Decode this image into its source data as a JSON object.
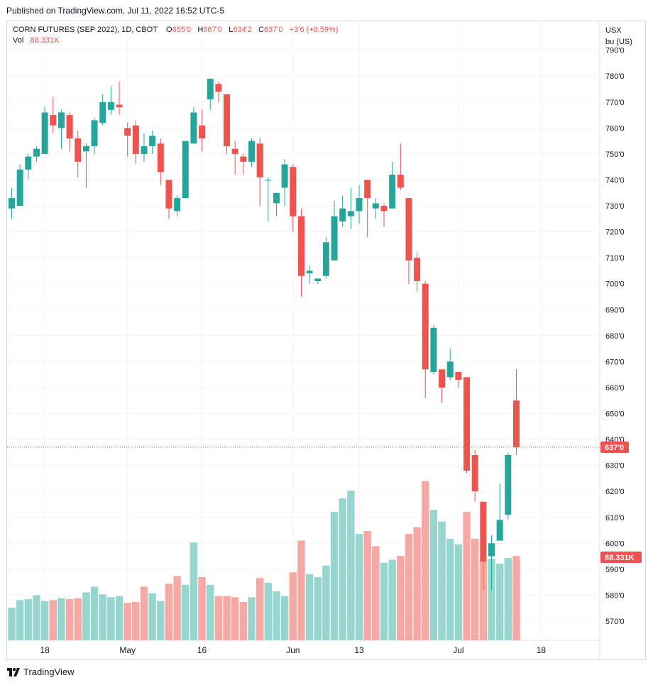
{
  "header": {
    "published": "Published on TradingView.com, Jul 11, 2022 16:52 UTC-5"
  },
  "legend": {
    "symbol": "CORN FUTURES (SEP 2022), 1D, CBOT",
    "o_label": "O",
    "o_value": "655'0",
    "h_label": "H",
    "h_value": "667'0",
    "l_label": "L",
    "l_value": "634'2",
    "c_label": "C",
    "c_value": "637'0",
    "change": "+3'6 (+0.59%)",
    "vol_label": "Vol",
    "vol_value": "88.331K"
  },
  "price_axis": {
    "currency": "USX",
    "unit": "bu (US)"
  },
  "footer": {
    "logo_text": "TradingView"
  },
  "colors": {
    "up": "#26a69a",
    "down": "#ef5350",
    "vol_up": "#97d5cf",
    "vol_down": "#f6a8a5",
    "grid": "#f0f3fa",
    "axis_text": "#131722"
  },
  "chart_data": {
    "type": "candlestick",
    "title": "CORN FUTURES (SEP 2022), 1D, CBOT",
    "ylim": [
      564,
      792
    ],
    "y_ticks": [
      "570'0",
      "580'0",
      "590'0",
      "600'0",
      "610'0",
      "620'0",
      "630'0",
      "640'0",
      "650'0",
      "660'0",
      "670'0",
      "680'0",
      "690'0",
      "700'0",
      "710'0",
      "720'0",
      "730'0",
      "740'0",
      "750'0",
      "760'0",
      "770'0",
      "780'0",
      "790'0"
    ],
    "x_tick_labels": [
      {
        "label": "18",
        "index": 4
      },
      {
        "label": "May",
        "index": 14
      },
      {
        "label": "16",
        "index": 23
      },
      {
        "label": "Jun",
        "index": 34
      },
      {
        "label": "13",
        "index": 42
      },
      {
        "label": "Jul",
        "index": 54
      },
      {
        "label": "18",
        "index": 64
      }
    ],
    "last_price": {
      "value": 637,
      "label": "637'0"
    },
    "last_volume": {
      "label": "88.331K"
    },
    "candles": [
      {
        "o": 729,
        "h": 737,
        "l": 725,
        "c": 733
      },
      {
        "o": 730,
        "h": 746,
        "l": 730,
        "c": 744
      },
      {
        "o": 744,
        "h": 750,
        "l": 740,
        "c": 749
      },
      {
        "o": 749,
        "h": 753,
        "l": 747,
        "c": 752
      },
      {
        "o": 750,
        "h": 768,
        "l": 750,
        "c": 766
      },
      {
        "o": 765,
        "h": 772,
        "l": 758,
        "c": 761
      },
      {
        "o": 760,
        "h": 767,
        "l": 752,
        "c": 766
      },
      {
        "o": 765,
        "h": 766,
        "l": 751,
        "c": 756
      },
      {
        "o": 756,
        "h": 759,
        "l": 741,
        "c": 747
      },
      {
        "o": 751,
        "h": 754,
        "l": 737,
        "c": 753
      },
      {
        "o": 753,
        "h": 764,
        "l": 750,
        "c": 763
      },
      {
        "o": 762,
        "h": 773,
        "l": 761,
        "c": 770
      },
      {
        "o": 767,
        "h": 776,
        "l": 765,
        "c": 770
      },
      {
        "o": 769,
        "h": 778,
        "l": 765,
        "c": 768
      },
      {
        "o": 760,
        "h": 762,
        "l": 749,
        "c": 757
      },
      {
        "o": 761,
        "h": 763,
        "l": 746,
        "c": 750
      },
      {
        "o": 750,
        "h": 758,
        "l": 747,
        "c": 753
      },
      {
        "o": 753,
        "h": 759,
        "l": 750,
        "c": 757
      },
      {
        "o": 754,
        "h": 756,
        "l": 738,
        "c": 743
      },
      {
        "o": 740,
        "h": 740,
        "l": 725,
        "c": 729
      },
      {
        "o": 728,
        "h": 734,
        "l": 726,
        "c": 733
      },
      {
        "o": 733,
        "h": 755,
        "l": 733,
        "c": 755
      },
      {
        "o": 754,
        "h": 768,
        "l": 754,
        "c": 766
      },
      {
        "o": 761,
        "h": 767,
        "l": 751,
        "c": 756
      },
      {
        "o": 771,
        "h": 779,
        "l": 767,
        "c": 779
      },
      {
        "o": 777,
        "h": 778,
        "l": 770,
        "c": 774
      },
      {
        "o": 773,
        "h": 773,
        "l": 750,
        "c": 753
      },
      {
        "o": 752,
        "h": 755,
        "l": 742,
        "c": 750
      },
      {
        "o": 749,
        "h": 750,
        "l": 742,
        "c": 747
      },
      {
        "o": 747,
        "h": 756,
        "l": 745,
        "c": 755
      },
      {
        "o": 754,
        "h": 756,
        "l": 730,
        "c": 741
      },
      {
        "o": 740,
        "h": 741,
        "l": 724,
        "c": 740
      },
      {
        "o": 731,
        "h": 734,
        "l": 726,
        "c": 735
      },
      {
        "o": 737,
        "h": 748,
        "l": 730,
        "c": 746
      },
      {
        "o": 745,
        "h": 746,
        "l": 720,
        "c": 726
      },
      {
        "o": 726,
        "h": 729,
        "l": 695,
        "c": 703
      },
      {
        "o": 704,
        "h": 707,
        "l": 700,
        "c": 705
      },
      {
        "o": 701,
        "h": 702,
        "l": 700,
        "c": 702
      },
      {
        "o": 703,
        "h": 718,
        "l": 702,
        "c": 716
      },
      {
        "o": 709,
        "h": 732,
        "l": 709,
        "c": 726
      },
      {
        "o": 724,
        "h": 734,
        "l": 722,
        "c": 729
      },
      {
        "o": 726,
        "h": 737,
        "l": 721,
        "c": 728
      },
      {
        "o": 728,
        "h": 738,
        "l": 723,
        "c": 733
      },
      {
        "o": 740,
        "h": 740,
        "l": 718,
        "c": 733
      },
      {
        "o": 729,
        "h": 733,
        "l": 725,
        "c": 731
      },
      {
        "o": 730,
        "h": 731,
        "l": 722,
        "c": 728
      },
      {
        "o": 729,
        "h": 747,
        "l": 729,
        "c": 742
      },
      {
        "o": 742,
        "h": 754,
        "l": 736,
        "c": 737
      },
      {
        "o": 733,
        "h": 733,
        "l": 700,
        "c": 709
      },
      {
        "o": 710,
        "h": 712,
        "l": 697,
        "c": 701
      },
      {
        "o": 700,
        "h": 701,
        "l": 656,
        "c": 667
      },
      {
        "o": 666,
        "h": 684,
        "l": 665,
        "c": 683
      },
      {
        "o": 667,
        "h": 667,
        "l": 654,
        "c": 660
      },
      {
        "o": 664,
        "h": 675,
        "l": 663,
        "c": 670
      },
      {
        "o": 666,
        "h": 666,
        "l": 660,
        "c": 663
      },
      {
        "o": 664,
        "h": 664,
        "l": 627,
        "c": 628
      },
      {
        "o": 634,
        "h": 636,
        "l": 616,
        "c": 620
      },
      {
        "o": 616,
        "h": 616,
        "l": 582,
        "c": 593
      },
      {
        "o": 595,
        "h": 603,
        "l": 582,
        "c": 600
      },
      {
        "o": 601,
        "h": 623,
        "l": 601,
        "c": 609
      },
      {
        "o": 611,
        "h": 635,
        "l": 609,
        "c": 634
      },
      {
        "o": 655,
        "h": 667,
        "l": 634,
        "c": 637
      }
    ],
    "volume": [
      {
        "v": 34,
        "up": true
      },
      {
        "v": 42,
        "up": true
      },
      {
        "v": 43,
        "up": true
      },
      {
        "v": 47,
        "up": true
      },
      {
        "v": 41,
        "up": true
      },
      {
        "v": 42,
        "up": false
      },
      {
        "v": 44,
        "up": true
      },
      {
        "v": 43,
        "up": false
      },
      {
        "v": 44,
        "up": false
      },
      {
        "v": 50,
        "up": true
      },
      {
        "v": 56,
        "up": true
      },
      {
        "v": 48,
        "up": true
      },
      {
        "v": 45,
        "up": true
      },
      {
        "v": 46,
        "up": true
      },
      {
        "v": 39,
        "up": false
      },
      {
        "v": 40,
        "up": false
      },
      {
        "v": 56,
        "up": false
      },
      {
        "v": 49,
        "up": true
      },
      {
        "v": 41,
        "up": true
      },
      {
        "v": 59,
        "up": false
      },
      {
        "v": 67,
        "up": false
      },
      {
        "v": 58,
        "up": true
      },
      {
        "v": 102,
        "up": true
      },
      {
        "v": 66,
        "up": false
      },
      {
        "v": 58,
        "up": true
      },
      {
        "v": 46,
        "up": false
      },
      {
        "v": 46,
        "up": false
      },
      {
        "v": 45,
        "up": false
      },
      {
        "v": 40,
        "up": false
      },
      {
        "v": 45,
        "up": true
      },
      {
        "v": 65,
        "up": false
      },
      {
        "v": 60,
        "up": true
      },
      {
        "v": 51,
        "up": true
      },
      {
        "v": 46,
        "up": true
      },
      {
        "v": 71,
        "up": false
      },
      {
        "v": 104,
        "up": false
      },
      {
        "v": 69,
        "up": true
      },
      {
        "v": 66,
        "up": true
      },
      {
        "v": 78,
        "up": true
      },
      {
        "v": 134,
        "up": true
      },
      {
        "v": 148,
        "up": true
      },
      {
        "v": 156,
        "up": true
      },
      {
        "v": 111,
        "up": true
      },
      {
        "v": 114,
        "up": false
      },
      {
        "v": 98,
        "up": false
      },
      {
        "v": 81,
        "up": true
      },
      {
        "v": 84,
        "up": true
      },
      {
        "v": 88,
        "up": false
      },
      {
        "v": 111,
        "up": false
      },
      {
        "v": 118,
        "up": false
      },
      {
        "v": 166,
        "up": false
      },
      {
        "v": 136,
        "up": true
      },
      {
        "v": 124,
        "up": true
      },
      {
        "v": 106,
        "up": true
      },
      {
        "v": 100,
        "up": true
      },
      {
        "v": 134,
        "up": false
      },
      {
        "v": 106,
        "up": false
      },
      {
        "v": 83,
        "up": false
      },
      {
        "v": 85,
        "up": true
      },
      {
        "v": 80,
        "up": true
      },
      {
        "v": 86,
        "up": true
      },
      {
        "v": 88,
        "up": false
      }
    ]
  }
}
